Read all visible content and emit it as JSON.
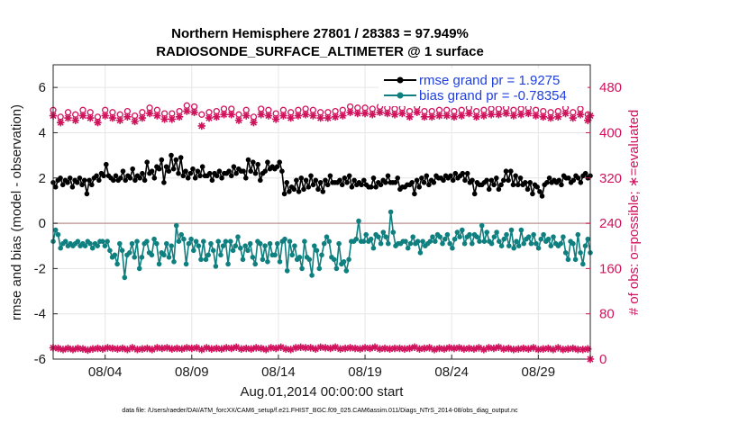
{
  "chart_data": {
    "type": "line",
    "title": [
      "Northern Hemisphere 27801 / 28383 = 97.949%",
      "RADIOSONDE_SURFACE_ALTIMETER @ 1 surface"
    ],
    "xlabel": "Aug.01,2014 00:00:00 start",
    "ylabel": "rmse and bias (model - observation)",
    "ylabel_right": "# of obs: o=possible; ∗=evaluated",
    "footnote": "data file: /Users/raeder/DAI/ATM_forcXX/CAM6_setup/f.e21.FHIST_BGC.f09_025.CAM6assim.011/Diags_NTrS_2014-08/obs_diag_output.nc",
    "xlim": [
      1,
      32
    ],
    "ylim": [
      -6,
      7
    ],
    "ylim_right": [
      0,
      520
    ],
    "x_ticks": [
      4,
      9,
      14,
      19,
      24,
      29
    ],
    "x_tick_labels": [
      "08/04",
      "08/09",
      "08/14",
      "08/19",
      "08/24",
      "08/29"
    ],
    "y_ticks": [
      -6,
      -4,
      -2,
      0,
      2,
      4,
      6
    ],
    "y_tick_labels": [
      "-6",
      "-4",
      "-2",
      "0",
      "2",
      "4",
      "6"
    ],
    "y_right_ticks": [
      0,
      80,
      160,
      240,
      320,
      400,
      480
    ],
    "y_right_tick_labels": [
      "0",
      "80",
      "160",
      "240",
      "320",
      "400",
      "480"
    ],
    "legend": [
      "rmse grand pr = 1.9275",
      "bias grand pr = -0.78354"
    ],
    "legend_position": "top-right",
    "colors": {
      "rmse": "#000000",
      "bias": "#0f7f7f",
      "obs": "#d0125c",
      "zero": "#c8a0a0"
    },
    "series": [
      {
        "name": "rmse",
        "axis": "left",
        "values": [
          1.8,
          1.6,
          1.9,
          2.0,
          1.7,
          1.9,
          1.8,
          2.0,
          1.6,
          1.9,
          1.8,
          2.0,
          1.7,
          1.9,
          1.3,
          1.9,
          1.7,
          2.0,
          2.1,
          1.9,
          2.2,
          2.1,
          2.6,
          2.1,
          2.0,
          1.9,
          2.1,
          1.9,
          2.0,
          2.3,
          1.9,
          2.1,
          2.0,
          2.4,
          1.9,
          2.1,
          2.0,
          2.2,
          1.9,
          2.7,
          2.2,
          2.3,
          2.0,
          2.5,
          2.4,
          2.8,
          1.8,
          2.5,
          2.3,
          3.0,
          2.4,
          2.8,
          2.2,
          2.9,
          2.1,
          2.3,
          2.0,
          2.2,
          2.4,
          2.0,
          2.3,
          2.1,
          2.5,
          2.1,
          2.1,
          2.2,
          1.9,
          2.2,
          2.1,
          2.3,
          2.0,
          2.2,
          2.2,
          2.3,
          2.1,
          2.5,
          2.2,
          2.4,
          2.3,
          2.3,
          2.0,
          2.8,
          2.3,
          2.7,
          2.2,
          2.6,
          1.9,
          2.2,
          2.3,
          2.7,
          2.4,
          2.5,
          2.4,
          2.5,
          2.7,
          2.3,
          1.3,
          1.8,
          1.4,
          1.6,
          1.5,
          1.9,
          1.4,
          2.0,
          1.5,
          1.9,
          1.6,
          2.1,
          1.7,
          1.9,
          1.5,
          1.8,
          1.4,
          1.9,
          1.7,
          2.1,
          1.8,
          1.8,
          1.8,
          1.9,
          1.7,
          2.0,
          1.8,
          2.1,
          1.6,
          1.9,
          1.7,
          1.8,
          1.7,
          1.9,
          1.7,
          1.6,
          1.6,
          2.0,
          1.6,
          1.8,
          1.7,
          1.9,
          1.8,
          2.1,
          1.8,
          1.8,
          1.8,
          2.0,
          1.5,
          1.6,
          1.6,
          1.7,
          1.7,
          1.8,
          1.3,
          1.9,
          1.6,
          2.0,
          1.8,
          2.1,
          1.7,
          1.9,
          1.8,
          2.1,
          2.0,
          2.0,
          1.9,
          2.1,
          2.0,
          2.1,
          1.9,
          2.2,
          2.0,
          2.1,
          2.2,
          1.9,
          2.2,
          1.8,
          1.9,
          1.3,
          1.8,
          1.7,
          1.7,
          1.8,
          1.9,
          1.5,
          1.9,
          1.7,
          2.0,
          1.5,
          1.7,
          1.9,
          2.3,
          1.9,
          2.3,
          1.7,
          2.1,
          1.7,
          2.0,
          1.7,
          1.8,
          1.5,
          1.8,
          1.3,
          1.7,
          1.6,
          1.4,
          1.2,
          1.7,
          1.8,
          2.0,
          1.8,
          1.9,
          1.8,
          1.9,
          1.7,
          2.1,
          2.0,
          2.0,
          1.8,
          1.9,
          2.1,
          2.0,
          1.8,
          2.1,
          2.2,
          2.0,
          2.1
        ]
      },
      {
        "name": "bias",
        "axis": "left",
        "values": [
          -0.8,
          -0.3,
          -0.5,
          -1.1,
          -0.9,
          -0.8,
          -1.0,
          -0.9,
          -1.0,
          -0.9,
          -0.8,
          -1.0,
          -0.9,
          -1.0,
          -0.8,
          -0.9,
          -1.1,
          -0.9,
          -1.0,
          -0.8,
          -0.8,
          -1.0,
          -0.8,
          -1.2,
          -1.5,
          -1.4,
          -1.8,
          -0.9,
          -1.2,
          -2.4,
          -1.4,
          -1.3,
          -0.9,
          -1.5,
          -0.8,
          -2.0,
          -1.5,
          -0.9,
          -0.8,
          -1.3,
          -1.4,
          -0.7,
          -0.9,
          -1.8,
          -1.3,
          -1.4,
          -0.9,
          -1.5,
          -1.0,
          -1.7,
          -0.1,
          -0.8,
          -0.5,
          -0.7,
          -1.8,
          -0.9,
          -0.7,
          -1.2,
          -0.8,
          -1.0,
          -1.6,
          -0.8,
          -1.6,
          -1.4,
          -0.9,
          -1.2,
          -1.9,
          -0.8,
          -1.4,
          -1.0,
          -0.8,
          -1.8,
          -0.8,
          -1.2,
          -1.0,
          -0.6,
          -1.1,
          -1.6,
          -1.0,
          -1.2,
          -0.9,
          -1.5,
          -1.8,
          -0.8,
          -0.9,
          -1.6,
          -1.0,
          -1.7,
          -0.9,
          -1.4,
          -1.4,
          -0.9,
          -1.7,
          -0.8,
          -0.7,
          -2.1,
          -0.8,
          -1.4,
          -1.0,
          -1.6,
          -1.5,
          -2.0,
          -0.8,
          -1.5,
          -1.6,
          -2.3,
          -1.0,
          -1.2,
          -2.0,
          -1.4,
          -0.9,
          -0.6,
          -0.8,
          -1.5,
          -1.6,
          -2.0,
          -0.9,
          -1.8,
          -1.7,
          -2.1,
          -1.6,
          -0.8,
          -0.8,
          -0.7,
          0.1,
          -0.8,
          -0.8,
          -0.5,
          -0.8,
          -0.7,
          -1.1,
          -0.5,
          -0.6,
          -0.9,
          -0.4,
          -0.6,
          -0.9,
          0.5,
          -0.4,
          -1.0,
          -0.9,
          -0.9,
          -0.8,
          -0.8,
          -1.1,
          -0.9,
          -0.6,
          -0.9,
          -0.8,
          -1.3,
          -0.8,
          -1.0,
          -0.9,
          -0.8,
          -0.6,
          -0.8,
          -0.5,
          -0.6,
          -0.9,
          -0.7,
          -0.5,
          -0.9,
          -1.1,
          -0.7,
          -0.4,
          -0.6,
          -0.3,
          -0.9,
          -0.6,
          -0.5,
          -0.9,
          -0.5,
          -0.6,
          -0.8,
          -0.1,
          -0.8,
          -0.4,
          -0.8,
          -0.9,
          -0.6,
          -0.4,
          -0.8,
          -1.0,
          -0.7,
          -0.5,
          -1.0,
          -0.3,
          -1.1,
          -0.8,
          -1.0,
          -0.3,
          -0.9,
          -0.7,
          -0.6,
          -0.9,
          -0.5,
          -0.9,
          -1.1,
          -0.7,
          -0.5,
          -0.8,
          -0.7,
          -1.0,
          -0.6,
          -0.9,
          -1.0,
          -0.9,
          -0.6,
          -1.3,
          -1.6,
          -0.8,
          -0.9,
          -1.6,
          -0.5,
          -1.3,
          -1.8,
          -1.0,
          -0.7,
          -1.3
        ]
      },
      {
        "name": "obs_possible",
        "axis": "right",
        "marker": "o",
        "values": [
          440,
          430,
          442,
          428,
          438,
          430,
          436,
          426,
          440,
          432,
          434,
          428,
          440,
          430,
          428,
          436,
          430,
          440,
          428,
          434,
          432,
          440,
          438,
          430,
          436,
          434,
          442,
          432,
          444,
          434,
          438,
          430,
          442,
          430,
          438,
          428,
          436,
          440,
          430,
          444,
          438,
          430,
          440,
          436,
          428,
          434,
          438,
          444,
          434,
          440,
          446,
          438,
          434,
          442,
          448,
          440,
          436,
          446,
          442,
          438,
          432,
          440,
          444,
          436,
          446,
          440,
          438,
          444,
          436,
          442,
          438,
          436,
          442,
          430,
          440,
          432,
          436,
          442,
          440,
          430,
          440,
          428,
          436,
          432,
          442,
          428,
          438,
          440,
          430,
          436,
          434,
          438,
          432,
          440,
          438,
          444,
          436,
          430,
          434,
          440,
          446,
          438,
          442,
          436,
          434,
          440,
          446,
          450,
          436,
          440,
          444,
          436,
          446,
          440,
          438,
          444,
          436,
          440,
          448,
          438,
          446,
          442,
          436,
          444,
          440,
          450,
          444,
          446,
          438,
          442,
          448,
          440,
          446,
          442,
          438,
          444,
          440,
          448,
          442,
          446,
          436,
          444,
          440,
          446,
          438,
          442,
          440,
          446,
          444,
          440,
          438,
          444,
          442,
          438,
          446,
          444,
          440,
          436,
          444,
          440,
          446,
          442,
          438,
          444,
          446,
          440,
          442,
          436,
          444,
          440,
          446,
          438,
          442,
          444,
          440,
          438,
          446,
          442,
          444,
          440,
          442,
          438,
          446,
          444,
          436,
          442,
          440,
          444,
          438,
          442,
          446,
          440,
          444,
          438,
          442,
          440,
          436,
          444,
          438,
          442,
          440,
          436,
          444,
          440,
          438,
          442,
          436,
          444,
          440,
          442,
          436,
          440,
          438,
          442,
          436,
          440,
          432,
          440
        ]
      },
      {
        "name": "obs_evaluated",
        "axis": "right",
        "marker": "*",
        "values": [
          430,
          420,
          432,
          418,
          428,
          420,
          426,
          416,
          430,
          422,
          424,
          418,
          430,
          420,
          418,
          426,
          420,
          430,
          418,
          424,
          422,
          430,
          428,
          420,
          426,
          424,
          432,
          422,
          434,
          424,
          428,
          420,
          432,
          420,
          428,
          418,
          426,
          430,
          420,
          434,
          428,
          420,
          430,
          426,
          408,
          424,
          428,
          434,
          424,
          430,
          436,
          428,
          424,
          432,
          438,
          430,
          426,
          436,
          432,
          428,
          412,
          430,
          434,
          426,
          436,
          430,
          428,
          434,
          426,
          432,
          428,
          426,
          432,
          420,
          430,
          422,
          426,
          432,
          430,
          420,
          430,
          418,
          426,
          422,
          432,
          418,
          428,
          430,
          420,
          426,
          424,
          428,
          422,
          430,
          428,
          434,
          426,
          420,
          424,
          430,
          436,
          428,
          432,
          426,
          424,
          430,
          436,
          440,
          426,
          430,
          434,
          426,
          436,
          430,
          428,
          434,
          426,
          430,
          438,
          428,
          436,
          432,
          426,
          434,
          430,
          440,
          434,
          436,
          428,
          432,
          438,
          430,
          436,
          432,
          428,
          434,
          430,
          438,
          432,
          436,
          426,
          434,
          430,
          436,
          428,
          432,
          430,
          436,
          434,
          430,
          428,
          434,
          432,
          428,
          436,
          434,
          430,
          426,
          434,
          430,
          436,
          432,
          428,
          434,
          436,
          430,
          432,
          426,
          434,
          430,
          436,
          428,
          432,
          434,
          430,
          428,
          436,
          432,
          434,
          430,
          432,
          428,
          436,
          434,
          426,
          432,
          430,
          434,
          428,
          432,
          436,
          430,
          434,
          428,
          432,
          430,
          426,
          434,
          428,
          432,
          430,
          426,
          434,
          430,
          428,
          432,
          426,
          434,
          430,
          432,
          426,
          430,
          428,
          432,
          426,
          430,
          422,
          430
        ]
      },
      {
        "name": "obs_bottom",
        "axis": "right",
        "marker": "*",
        "values": [
          20,
          18,
          19,
          20,
          17,
          18,
          19,
          16,
          17,
          18,
          19,
          20,
          18,
          17,
          16,
          19,
          18,
          20,
          19,
          17,
          18,
          19,
          20,
          18,
          19,
          17,
          18,
          16,
          19,
          18,
          17,
          19,
          20,
          18,
          17,
          19,
          18,
          20,
          19,
          18,
          17,
          19,
          20,
          21,
          19,
          18,
          20,
          19,
          18,
          20,
          19,
          17,
          18,
          19,
          20,
          18,
          19,
          21,
          20,
          19,
          17,
          18,
          20,
          19,
          18,
          20,
          19,
          17,
          18,
          19,
          20,
          18,
          19,
          20,
          21,
          19,
          18,
          17,
          19,
          20,
          18,
          19,
          20,
          21,
          19,
          18,
          17,
          19,
          20,
          18,
          19,
          20,
          21,
          19,
          18,
          20,
          17,
          19,
          20,
          18,
          21,
          19,
          20,
          22,
          20,
          19,
          18,
          20,
          21,
          19,
          20,
          18,
          19,
          20,
          21,
          19,
          18,
          20,
          19,
          18,
          20,
          21,
          19,
          20,
          18,
          19,
          20,
          18,
          19,
          20,
          21,
          19,
          18,
          20,
          19,
          17,
          18,
          20,
          19,
          18,
          19,
          20,
          18,
          17,
          19,
          20,
          21,
          19,
          18,
          20,
          19,
          18,
          20,
          19,
          17,
          18,
          19,
          20,
          18,
          19,
          20,
          21,
          19,
          18,
          20,
          19,
          18,
          20,
          19,
          17,
          18,
          19,
          20,
          18,
          17,
          19,
          20,
          18,
          19,
          20,
          21,
          19,
          18,
          20,
          19,
          18,
          17,
          19,
          18,
          20,
          19,
          17,
          18,
          19,
          20,
          18,
          17,
          19,
          18,
          20,
          19,
          18,
          17,
          19,
          20,
          18,
          17,
          19,
          18,
          17,
          19,
          18,
          17,
          18,
          17,
          16,
          18,
          0
        ]
      }
    ]
  }
}
